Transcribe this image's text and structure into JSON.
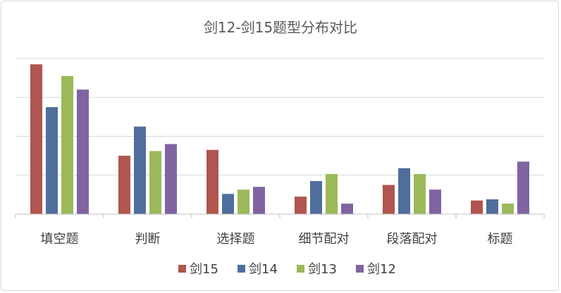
{
  "chart_data": {
    "type": "bar",
    "title": "剑12-剑15题型分布对比",
    "categories": [
      "填空题",
      "判断",
      "选择题",
      "细节配对",
      "段落配对",
      "标题"
    ],
    "ylim": [
      0,
      40
    ],
    "grid": true,
    "legend_position": "bottom",
    "series": [
      {
        "name": "剑15",
        "color": "#b0554f",
        "values": [
          38.5,
          15,
          16.5,
          4.5,
          7.5,
          3.5
        ]
      },
      {
        "name": "剑14",
        "color": "#4f6e9c",
        "values": [
          27.5,
          22.5,
          5.2,
          8.5,
          11.8,
          3.8
        ]
      },
      {
        "name": "剑13",
        "color": "#9bba5a",
        "values": [
          35.5,
          16.2,
          6.3,
          10.3,
          10.3,
          2.7
        ]
      },
      {
        "name": "剑12",
        "color": "#8064a2",
        "values": [
          32,
          18,
          7,
          2.7,
          6.3,
          13.5
        ]
      }
    ]
  }
}
